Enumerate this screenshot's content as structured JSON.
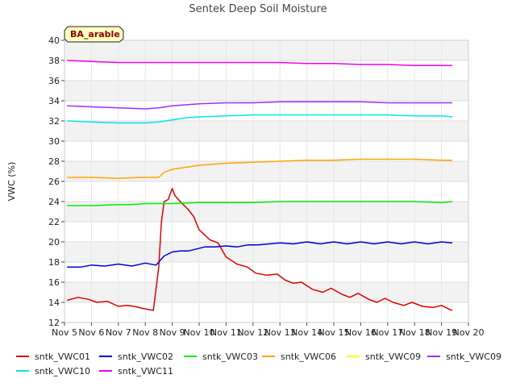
{
  "chart_data": {
    "type": "line",
    "title": "Sentek Deep Soil Moisture",
    "ylabel": "VWC (%)",
    "xlabel": "",
    "site_label": "BA_arable",
    "ylim": [
      12,
      40
    ],
    "xlim": [
      5,
      20
    ],
    "yticks": [
      12,
      14,
      16,
      18,
      20,
      22,
      24,
      26,
      28,
      30,
      32,
      34,
      36,
      38,
      40
    ],
    "xticks": [
      {
        "value": 5,
        "label": "Nov 5"
      },
      {
        "value": 6,
        "label": "Nov 6"
      },
      {
        "value": 7,
        "label": "Nov 7"
      },
      {
        "value": 8,
        "label": "Nov 8"
      },
      {
        "value": 9,
        "label": "Nov 9"
      },
      {
        "value": 10,
        "label": "Nov 10"
      },
      {
        "value": 11,
        "label": "Nov 11"
      },
      {
        "value": 12,
        "label": "Nov 12"
      },
      {
        "value": 13,
        "label": "Nov 13"
      },
      {
        "value": 14,
        "label": "Nov 14"
      },
      {
        "value": 15,
        "label": "Nov 15"
      },
      {
        "value": 16,
        "label": "Nov 16"
      },
      {
        "value": 17,
        "label": "Nov 17"
      },
      {
        "value": 18,
        "label": "Nov 18"
      },
      {
        "value": 19,
        "label": "Nov 19"
      },
      {
        "value": 20,
        "label": "Nov 20"
      }
    ],
    "grid": "horizontal-bands",
    "legend_position": "bottom",
    "series": [
      {
        "name": "sntk_VWC01",
        "color": "#dd0000",
        "x": [
          5.1,
          5.5,
          5.9,
          6.2,
          6.6,
          7.0,
          7.3,
          7.6,
          7.9,
          8.3,
          8.5,
          8.6,
          8.7,
          8.85,
          9.0,
          9.1,
          9.3,
          9.6,
          9.8,
          10.0,
          10.4,
          10.7,
          11.0,
          11.4,
          11.8,
          12.1,
          12.5,
          12.9,
          13.2,
          13.5,
          13.8,
          14.2,
          14.6,
          14.9,
          15.3,
          15.6,
          15.9,
          16.3,
          16.6,
          16.9,
          17.2,
          17.6,
          17.9,
          18.3,
          18.7,
          19.0,
          19.3,
          19.4
        ],
        "values": [
          14.2,
          14.5,
          14.3,
          14.0,
          14.1,
          13.6,
          13.7,
          13.6,
          13.4,
          13.2,
          17.5,
          22.0,
          24.0,
          24.2,
          25.3,
          24.6,
          24.0,
          23.2,
          22.5,
          21.2,
          20.2,
          19.9,
          18.5,
          17.8,
          17.5,
          16.9,
          16.7,
          16.8,
          16.2,
          15.9,
          16.0,
          15.3,
          15.0,
          15.4,
          14.8,
          14.5,
          14.9,
          14.3,
          14.0,
          14.4,
          14.0,
          13.7,
          14.0,
          13.6,
          13.5,
          13.7,
          13.3,
          13.2
        ]
      },
      {
        "name": "sntk_VWC02",
        "color": "#0000cc",
        "x": [
          5.1,
          5.6,
          6.0,
          6.5,
          7.0,
          7.5,
          8.0,
          8.4,
          8.7,
          9.0,
          9.3,
          9.6,
          9.9,
          10.2,
          10.6,
          11.0,
          11.4,
          11.8,
          12.2,
          12.6,
          13.0,
          13.5,
          14.0,
          14.5,
          15.0,
          15.5,
          16.0,
          16.5,
          17.0,
          17.5,
          18.0,
          18.5,
          19.0,
          19.4
        ],
        "values": [
          17.5,
          17.5,
          17.7,
          17.6,
          17.8,
          17.6,
          17.9,
          17.7,
          18.6,
          19.0,
          19.1,
          19.1,
          19.3,
          19.5,
          19.5,
          19.6,
          19.5,
          19.7,
          19.7,
          19.8,
          19.9,
          19.8,
          20.0,
          19.8,
          20.0,
          19.8,
          20.0,
          19.8,
          20.0,
          19.8,
          20.0,
          19.8,
          20.0,
          19.9
        ]
      },
      {
        "name": "sntk_VWC03",
        "color": "#00ee00",
        "x": [
          5.1,
          6.0,
          7.0,
          7.5,
          8.0,
          9.0,
          10.0,
          11.0,
          12.0,
          13.0,
          14.0,
          15.0,
          16.0,
          17.0,
          18.0,
          19.0,
          19.4
        ],
        "values": [
          23.6,
          23.6,
          23.7,
          23.7,
          23.8,
          23.8,
          23.9,
          23.9,
          23.9,
          24.0,
          24.0,
          24.0,
          24.0,
          24.0,
          24.0,
          23.9,
          24.0
        ]
      },
      {
        "name": "sntk_VWC06",
        "color": "#ffa500",
        "x": [
          5.1,
          6.0,
          7.0,
          7.8,
          8.5,
          8.7,
          9.0,
          9.5,
          10.0,
          11.0,
          12.0,
          13.0,
          14.0,
          15.0,
          16.0,
          17.0,
          18.0,
          19.0,
          19.4
        ],
        "values": [
          26.4,
          26.4,
          26.3,
          26.4,
          26.4,
          26.9,
          27.2,
          27.4,
          27.6,
          27.8,
          27.9,
          28.0,
          28.1,
          28.1,
          28.2,
          28.2,
          28.2,
          28.1,
          28.1
        ]
      },
      {
        "name": "sntk_VWC09",
        "color": "#ffff00",
        "x": [],
        "values": []
      },
      {
        "name": "sntk_VWC09",
        "color": "#9b30ff",
        "x": [
          5.1,
          6.0,
          7.0,
          8.0,
          8.5,
          9.0,
          9.5,
          10.0,
          11.0,
          12.0,
          13.0,
          14.0,
          15.0,
          16.0,
          17.0,
          18.0,
          19.0,
          19.4
        ],
        "values": [
          33.5,
          33.4,
          33.3,
          33.2,
          33.3,
          33.5,
          33.6,
          33.7,
          33.8,
          33.8,
          33.9,
          33.9,
          33.9,
          33.9,
          33.8,
          33.8,
          33.8,
          33.8
        ]
      },
      {
        "name": "sntk_VWC10",
        "color": "#00e5ee",
        "x": [
          5.1,
          6.0,
          7.0,
          8.0,
          8.5,
          9.0,
          9.5,
          10.0,
          11.0,
          12.0,
          13.0,
          14.0,
          15.0,
          16.0,
          17.0,
          18.0,
          19.0,
          19.4
        ],
        "values": [
          32.0,
          31.9,
          31.8,
          31.8,
          31.9,
          32.1,
          32.3,
          32.4,
          32.5,
          32.6,
          32.6,
          32.6,
          32.6,
          32.6,
          32.6,
          32.5,
          32.5,
          32.4
        ]
      },
      {
        "name": "sntk_VWC11",
        "color": "#ee00ee",
        "x": [
          5.1,
          6.0,
          7.0,
          8.0,
          9.0,
          10.0,
          11.0,
          12.0,
          13.0,
          14.0,
          15.0,
          16.0,
          17.0,
          18.0,
          19.0,
          19.4
        ],
        "values": [
          38.0,
          37.9,
          37.8,
          37.8,
          37.8,
          37.8,
          37.8,
          37.8,
          37.8,
          37.7,
          37.7,
          37.6,
          37.6,
          37.5,
          37.5,
          37.5
        ]
      }
    ]
  }
}
